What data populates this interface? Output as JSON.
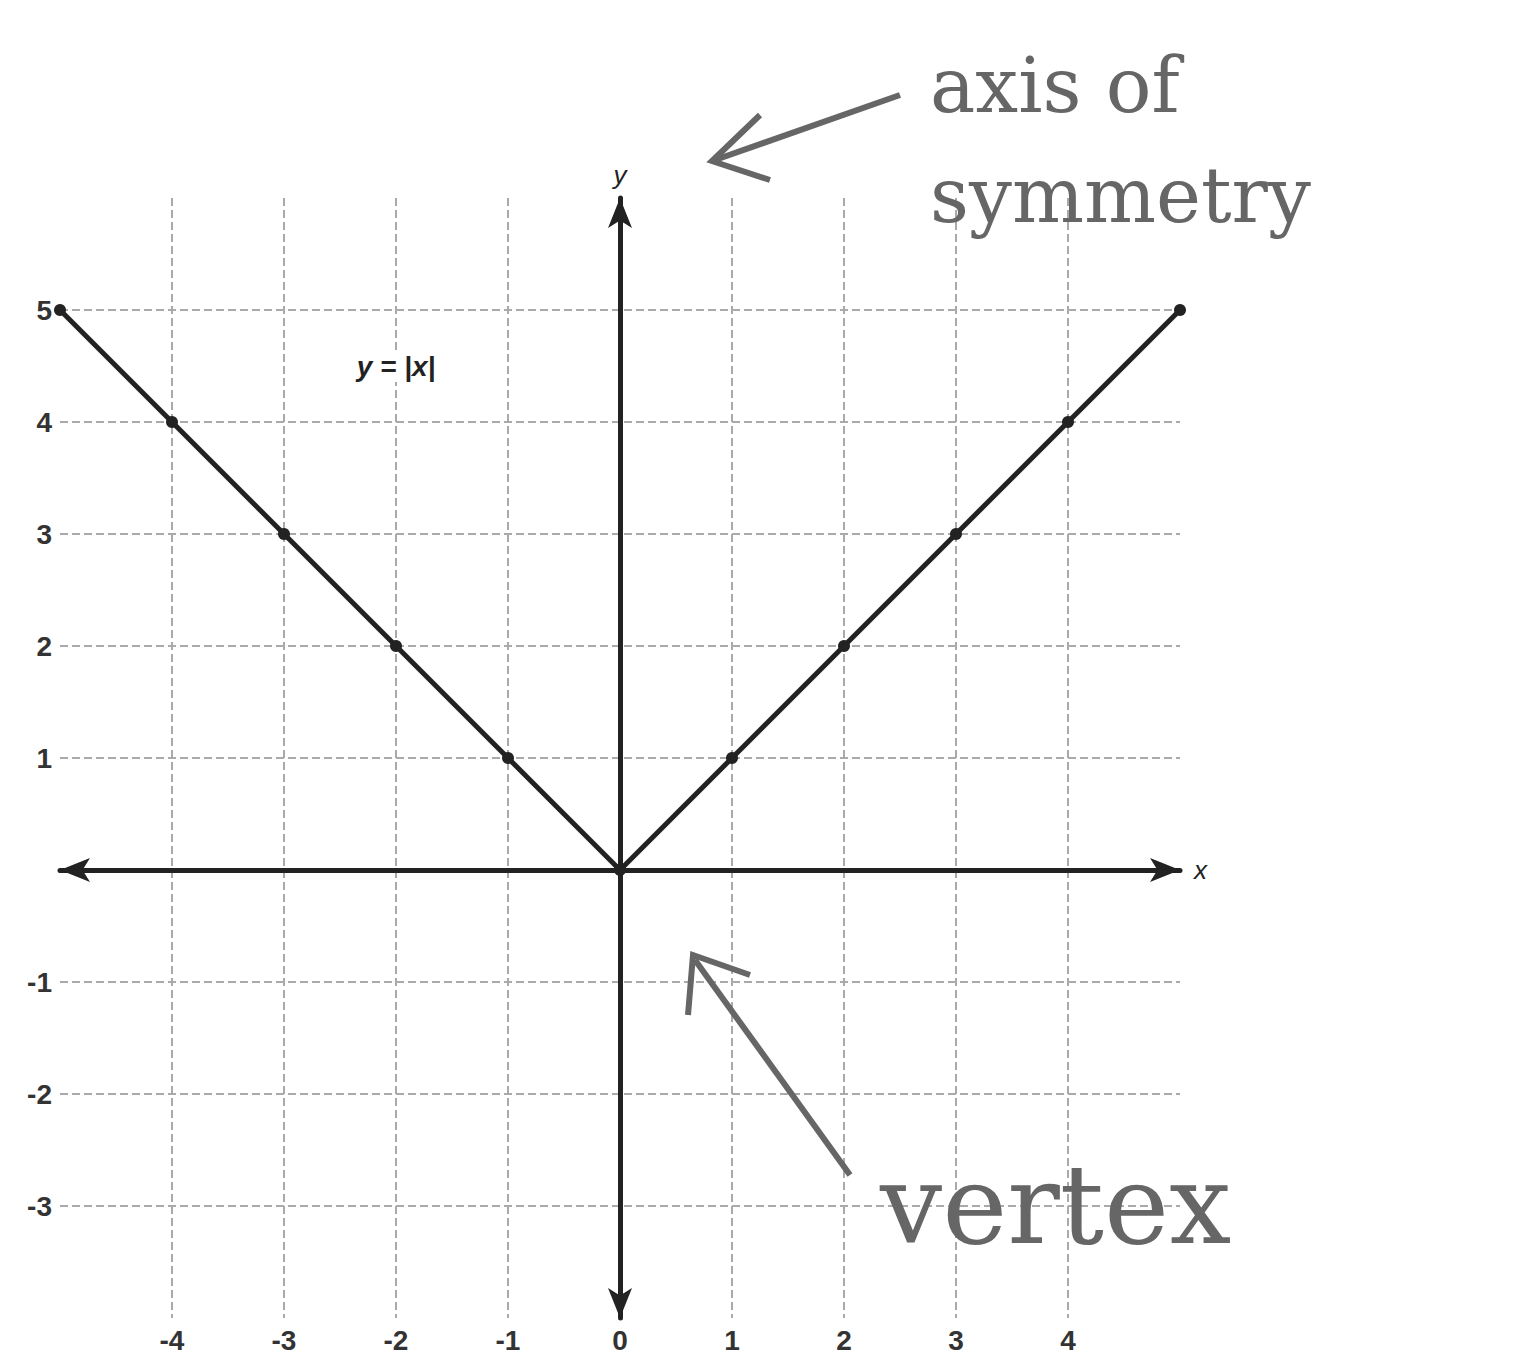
{
  "chart_data": {
    "type": "line",
    "x_label": "x",
    "y_label": "y",
    "series": [
      {
        "name": "y = |x|",
        "color": "#222222",
        "marker": "circle",
        "line_style": "solid",
        "x": [
          -5,
          -4,
          -3,
          -2,
          -1,
          0,
          1,
          2,
          3,
          4,
          5
        ],
        "values": [
          5,
          4,
          3,
          2,
          1,
          0,
          1,
          2,
          3,
          4,
          5
        ]
      }
    ],
    "xlim": [
      -5,
      5
    ],
    "xticks": [
      -4,
      -3,
      -2,
      -1,
      0,
      1,
      2,
      3,
      4
    ],
    "ylim": [
      -4,
      6
    ],
    "yticks": [
      -3,
      -2,
      -1,
      1,
      2,
      3,
      4,
      5
    ],
    "grid": true,
    "annotations": [
      {
        "text": "y = |x|"
      },
      {
        "text": "axis of symmetry"
      },
      {
        "text": "vertex"
      }
    ]
  }
}
